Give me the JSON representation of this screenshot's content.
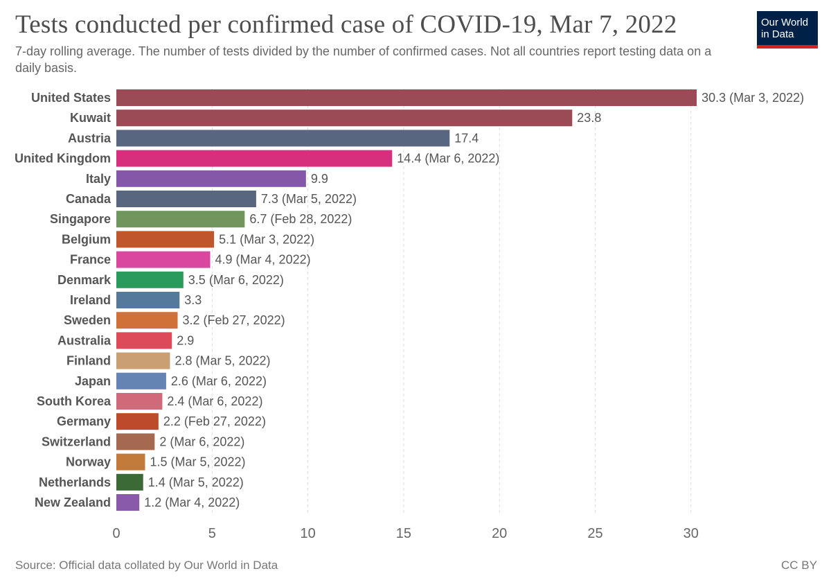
{
  "header": {
    "title": "Tests conducted per confirmed case of COVID-19, Mar 7, 2022",
    "subtitle": "7-day rolling average. The number of tests divided by the number of confirmed cases. Not all countries report testing data on a daily basis.",
    "logo_line1": "Our World",
    "logo_line2": "in Data"
  },
  "footer": {
    "source": "Source: Official data collated by Our World in Data",
    "license": "CC BY"
  },
  "chart_data": {
    "type": "bar",
    "orientation": "horizontal",
    "title": "Tests conducted per confirmed case of COVID-19, Mar 7, 2022",
    "subtitle": "7-day rolling average. The number of tests divided by the number of confirmed cases. Not all countries report testing data on a daily basis.",
    "xlim": [
      0,
      30.5
    ],
    "xticks": [
      0,
      5,
      10,
      15,
      20,
      25,
      30
    ],
    "grid": "vertical dashed",
    "bars": [
      {
        "category": "United States",
        "value": 30.3,
        "label": "30.3 (Mar 3, 2022)",
        "color": "#9a4b55"
      },
      {
        "category": "Kuwait",
        "value": 23.8,
        "label": "23.8",
        "color": "#9a4b55"
      },
      {
        "category": "Austria",
        "value": 17.4,
        "label": "17.4",
        "color": "#58667f"
      },
      {
        "category": "United Kingdom",
        "value": 14.4,
        "label": "14.4 (Mar 6, 2022)",
        "color": "#d72f7d"
      },
      {
        "category": "Italy",
        "value": 9.9,
        "label": "9.9",
        "color": "#8557a8"
      },
      {
        "category": "Canada",
        "value": 7.3,
        "label": "7.3 (Mar 5, 2022)",
        "color": "#58667f"
      },
      {
        "category": "Singapore",
        "value": 6.7,
        "label": "6.7 (Feb 28, 2022)",
        "color": "#71965d"
      },
      {
        "category": "Belgium",
        "value": 5.1,
        "label": "5.1 (Mar 3, 2022)",
        "color": "#c0562c"
      },
      {
        "category": "France",
        "value": 4.9,
        "label": "4.9 (Mar 4, 2022)",
        "color": "#d9479e"
      },
      {
        "category": "Denmark",
        "value": 3.5,
        "label": "3.5 (Mar 6, 2022)",
        "color": "#2b9a5d"
      },
      {
        "category": "Ireland",
        "value": 3.3,
        "label": "3.3",
        "color": "#55799a"
      },
      {
        "category": "Sweden",
        "value": 3.2,
        "label": "3.2 (Feb 27, 2022)",
        "color": "#d0713a"
      },
      {
        "category": "Australia",
        "value": 2.9,
        "label": "2.9",
        "color": "#dd4a5a"
      },
      {
        "category": "Finland",
        "value": 2.8,
        "label": "2.8 (Mar 5, 2022)",
        "color": "#c99f73"
      },
      {
        "category": "Japan",
        "value": 2.6,
        "label": "2.6 (Mar 6, 2022)",
        "color": "#6583b3"
      },
      {
        "category": "South Korea",
        "value": 2.4,
        "label": "2.4 (Mar 6, 2022)",
        "color": "#d06a7a"
      },
      {
        "category": "Germany",
        "value": 2.2,
        "label": "2.2 (Feb 27, 2022)",
        "color": "#bd4a2a"
      },
      {
        "category": "Switzerland",
        "value": 2.0,
        "label": "2 (Mar 6, 2022)",
        "color": "#a5694f"
      },
      {
        "category": "Norway",
        "value": 1.5,
        "label": "1.5 (Mar 5, 2022)",
        "color": "#c27b3b"
      },
      {
        "category": "Netherlands",
        "value": 1.4,
        "label": "1.4 (Mar 5, 2022)",
        "color": "#3c6a36"
      },
      {
        "category": "New Zealand",
        "value": 1.2,
        "label": "1.2 (Mar 4, 2022)",
        "color": "#8a5aaa"
      }
    ]
  }
}
